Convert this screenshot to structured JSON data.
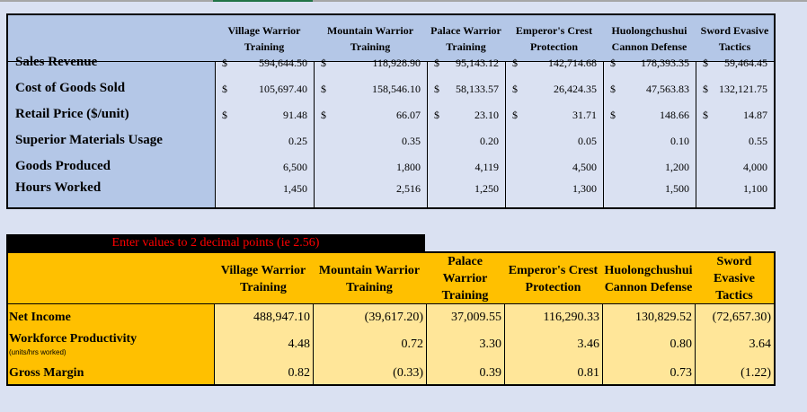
{
  "columns": [
    "Village Warrior Training",
    "Mountain Warrior Training",
    "Palace Warrior Training",
    "Emperor's Crest Protection",
    "Huolongchushui Cannon Defense",
    "Sword Evasive Tactics"
  ],
  "inputs": {
    "rows": [
      {
        "label": "Sales Revenue",
        "currency": "$",
        "values": [
          "594,644.50",
          "118,928.90",
          "95,143.12",
          "142,714.68",
          "178,393.35",
          "59,464.45"
        ]
      },
      {
        "label": "Cost of Goods Sold",
        "currency": "$",
        "values": [
          "105,697.40",
          "158,546.10",
          "58,133.57",
          "26,424.35",
          "47,563.83",
          "132,121.75"
        ]
      },
      {
        "label": "Retail Price ($/unit)",
        "currency": "$",
        "values": [
          "91.48",
          "66.07",
          "23.10",
          "31.71",
          "148.66",
          "14.87"
        ]
      },
      {
        "label": "Superior Materials Usage",
        "currency": "",
        "values": [
          "0.25",
          "0.35",
          "0.20",
          "0.05",
          "0.10",
          "0.55"
        ]
      },
      {
        "label": "Goods Produced",
        "currency": "",
        "values": [
          "6,500",
          "1,800",
          "4,119",
          "4,500",
          "1,200",
          "4,000"
        ]
      },
      {
        "label": "Hours Worked",
        "currency": "",
        "values": [
          "1,450",
          "2,516",
          "1,250",
          "1,300",
          "1,500",
          "1,100"
        ]
      }
    ]
  },
  "instruction": "Enter values to 2 decimal points (ie 2.56)",
  "results": {
    "columns": [
      "Village Warrior Training",
      "Mountain Warrior Training",
      "Palace Warrior Training",
      "Emperor's Crest Protection",
      "Huolongchushui Cannon Defense",
      "Sword Evasive Tactics"
    ],
    "rows": [
      {
        "label": "Net Income",
        "sublabel": "",
        "values": [
          "488,947.10",
          "(39,617.20)",
          "37,009.55",
          "116,290.33",
          "130,829.52",
          "(72,657.30)"
        ]
      },
      {
        "label": "Workforce Productivity",
        "sublabel": "(units/hrs worked)",
        "values": [
          "4.48",
          "0.72",
          "3.30",
          "3.46",
          "0.80",
          "3.64"
        ]
      },
      {
        "label": "Gross Margin",
        "sublabel": "",
        "values": [
          "0.82",
          "(0.33)",
          "0.39",
          "0.81",
          "0.73",
          "(1.22)"
        ]
      }
    ]
  },
  "colors": {
    "input_label_bg": "#b4c7e7",
    "input_cell_bg": "#dae1f2",
    "result_header_bg": "#ffc000",
    "result_cell_bg": "#ffe699",
    "instruction_text": "#ff0000"
  }
}
